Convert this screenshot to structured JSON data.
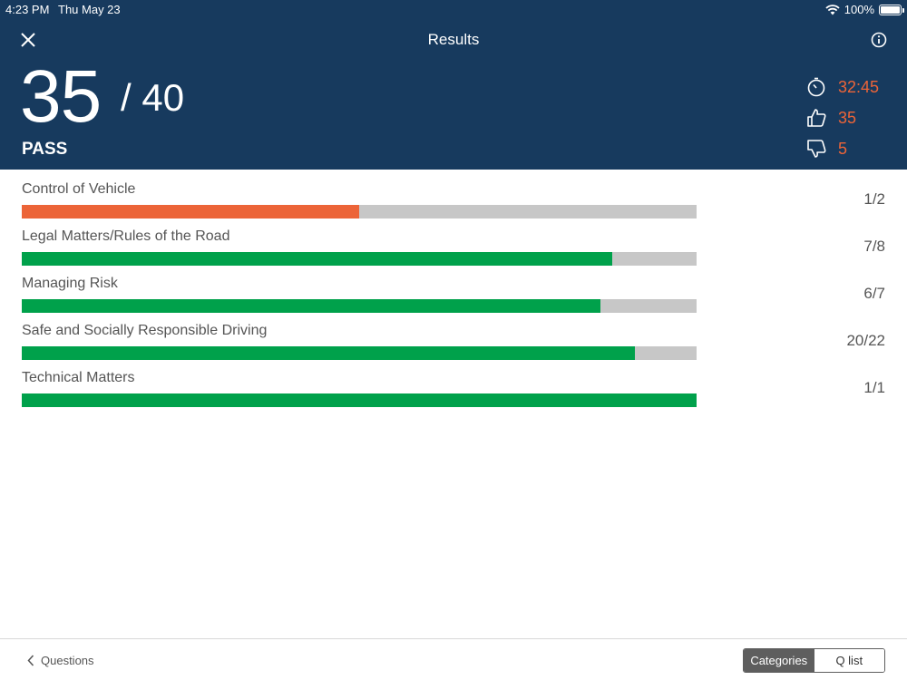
{
  "status_bar": {
    "time": "4:23 PM",
    "date": "Thu May 23",
    "battery": "100%"
  },
  "nav": {
    "title": "Results"
  },
  "score": {
    "correct": "35",
    "total": "/ 40",
    "result": "PASS"
  },
  "stats": {
    "time": "32:45",
    "correct": "35",
    "wrong": "5"
  },
  "colors": {
    "header": "#173a5e",
    "accent": "#ec6438",
    "pass_bar": "#00a14b",
    "fail_bar": "#ec6438",
    "track": "#c7c7c7"
  },
  "categories": [
    {
      "name": "Control of Vehicle",
      "score": "1/2",
      "progress": 0.5,
      "status": "fail"
    },
    {
      "name": "Legal Matters/Rules of the Road",
      "score": "7/8",
      "progress": 0.875,
      "status": "pass"
    },
    {
      "name": "Managing Risk",
      "score": "6/7",
      "progress": 0.857,
      "status": "pass"
    },
    {
      "name": "Safe and Socially Responsible Driving",
      "score": "20/22",
      "progress": 0.909,
      "status": "pass"
    },
    {
      "name": "Technical Matters",
      "score": "1/1",
      "progress": 1.0,
      "status": "pass"
    }
  ],
  "footer": {
    "back_label": "Questions",
    "tab_categories": "Categories",
    "tab_qlist": "Q list"
  }
}
